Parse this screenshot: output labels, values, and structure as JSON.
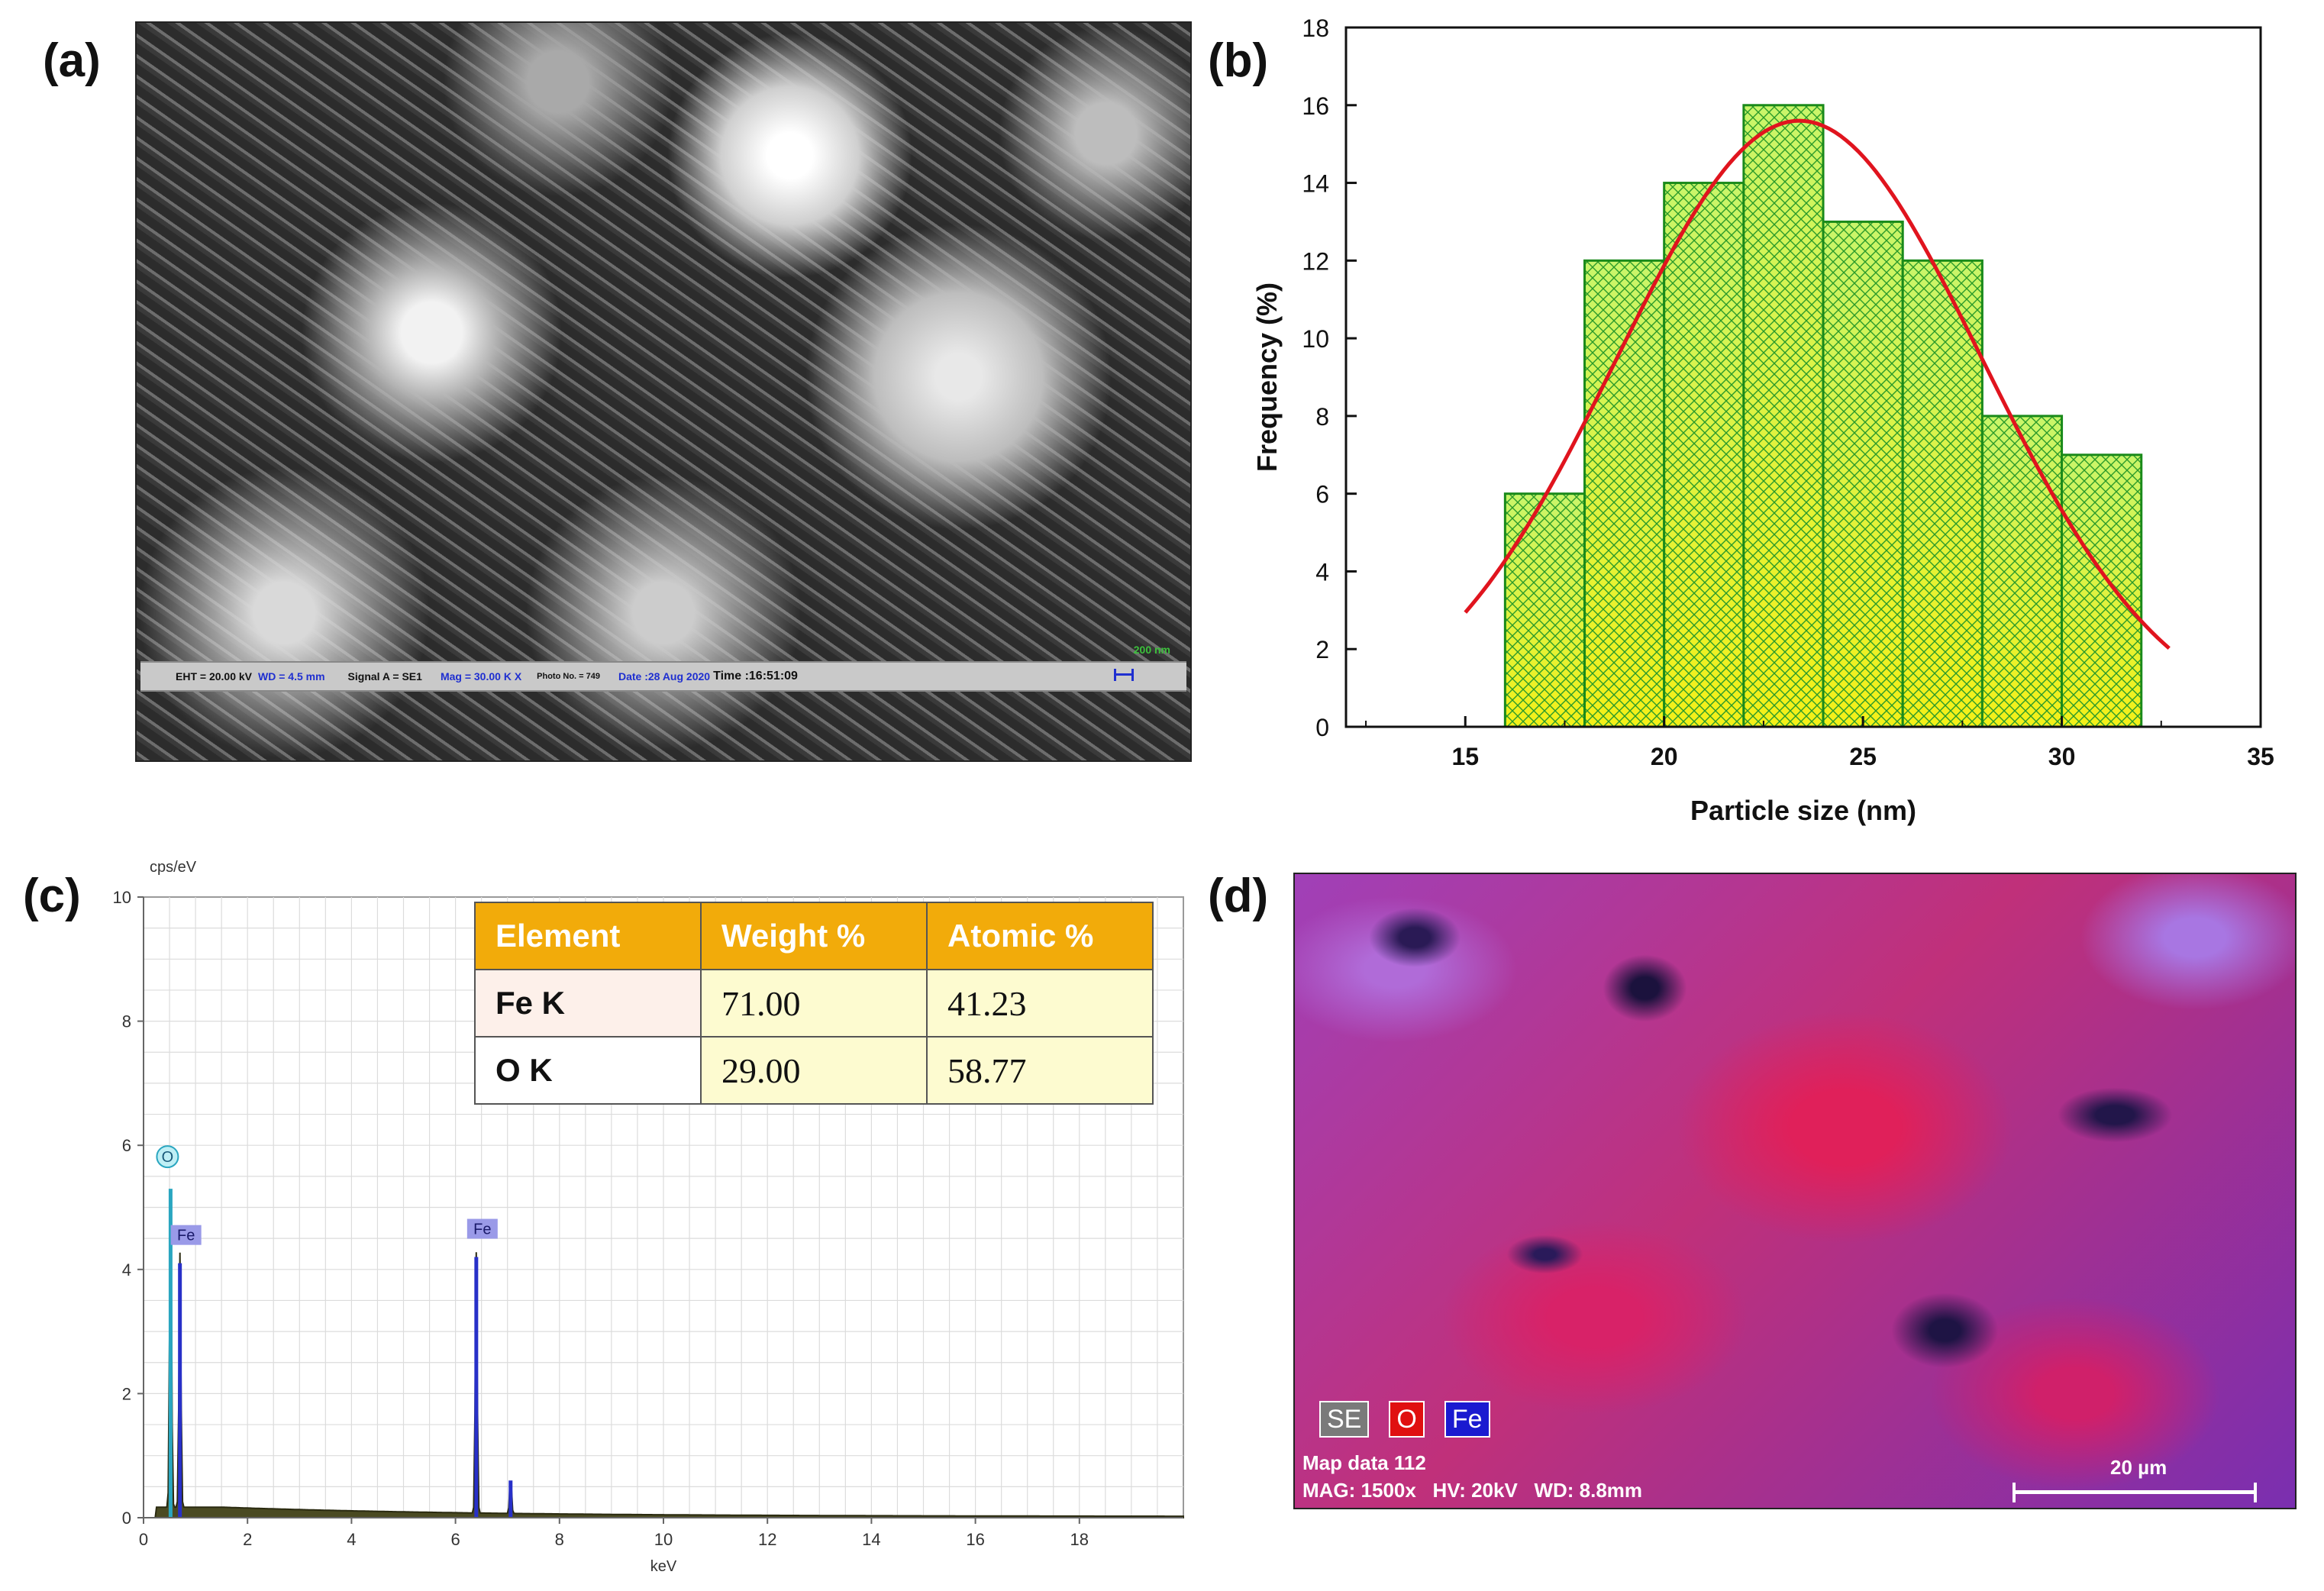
{
  "panels": {
    "a": {
      "label": "(a)",
      "info_bar": {
        "eht": "EHT = 20.00 kV",
        "wd": "WD = 4.5 mm",
        "signal": "Signal A = SE1",
        "mag": "Mag = 30.00 K X",
        "photo": "Photo No. = 749",
        "date": "Date :28 Aug 2020",
        "time": "Time :16:51:09",
        "scale": "200 nm"
      }
    },
    "b": {
      "label": "(b)"
    },
    "c": {
      "label": "(c)",
      "table": {
        "headers": [
          "Element",
          "Weight %",
          "Atomic %"
        ],
        "rows": [
          {
            "element": "Fe K",
            "weight": "71.00",
            "atomic": "41.23"
          },
          {
            "element": "O K",
            "weight": "29.00",
            "atomic": "58.77"
          }
        ]
      }
    },
    "d": {
      "label": "(d)",
      "legend": {
        "se": "SE",
        "o": "O",
        "fe": "Fe"
      },
      "map_title": "Map data 112",
      "params": "MAG: 1500x   HV: 20kV   WD: 8.8mm",
      "scale": "20 µm"
    }
  },
  "chart_data": [
    {
      "type": "bar",
      "panel": "b",
      "title": "",
      "xlabel": "Particle size (nm)",
      "ylabel": "Frequency (%)",
      "xlim": [
        12,
        35
      ],
      "ylim": [
        0,
        18
      ],
      "xticks": [
        15,
        20,
        25,
        30,
        35
      ],
      "yticks": [
        0,
        2,
        4,
        6,
        8,
        10,
        12,
        14,
        16,
        18
      ],
      "bins": [
        {
          "from": 16,
          "to": 18,
          "value": 6
        },
        {
          "from": 18,
          "to": 20,
          "value": 12
        },
        {
          "from": 20,
          "to": 22,
          "value": 14
        },
        {
          "from": 22,
          "to": 24,
          "value": 16
        },
        {
          "from": 24,
          "to": 26,
          "value": 13
        },
        {
          "from": 26,
          "to": 28,
          "value": 12
        },
        {
          "from": 28,
          "to": 30,
          "value": 8
        },
        {
          "from": 30,
          "to": 32,
          "value": 7
        }
      ],
      "fit": {
        "type": "gaussian",
        "peak_x": 23.4,
        "peak_y": 15.6,
        "sigma": 4.6,
        "x_range": [
          15,
          32.7
        ]
      },
      "colors": {
        "bar_top": "#c9f56a",
        "bar_bottom": "#f4f018",
        "bar_edge": "#1a8a1a",
        "hatch": "#2a9a2a",
        "fit": "#e0141e"
      }
    },
    {
      "type": "line",
      "panel": "c",
      "title": "",
      "xlabel": "keV",
      "ylabel": "cps/eV",
      "xlim": [
        0,
        20
      ],
      "ylim": [
        0,
        10
      ],
      "xticks": [
        0,
        2,
        4,
        6,
        8,
        10,
        12,
        14,
        16,
        18
      ],
      "yticks": [
        0,
        2,
        4,
        6,
        8,
        10
      ],
      "peaks": [
        {
          "label": "O",
          "energy": 0.52,
          "height": 5.3
        },
        {
          "label": "Fe",
          "energy": 0.7,
          "height": 4.1
        },
        {
          "label": "Fe",
          "energy": 6.4,
          "height": 4.2
        },
        {
          "label": "",
          "energy": 7.06,
          "height": 0.6
        }
      ],
      "background_level": 0.15,
      "colors": {
        "spectrum": "#2a2a10",
        "peak_o": "#2aa6c0",
        "peak_fe": "#2830c8",
        "label_bg": "#9a9ae8"
      }
    }
  ]
}
